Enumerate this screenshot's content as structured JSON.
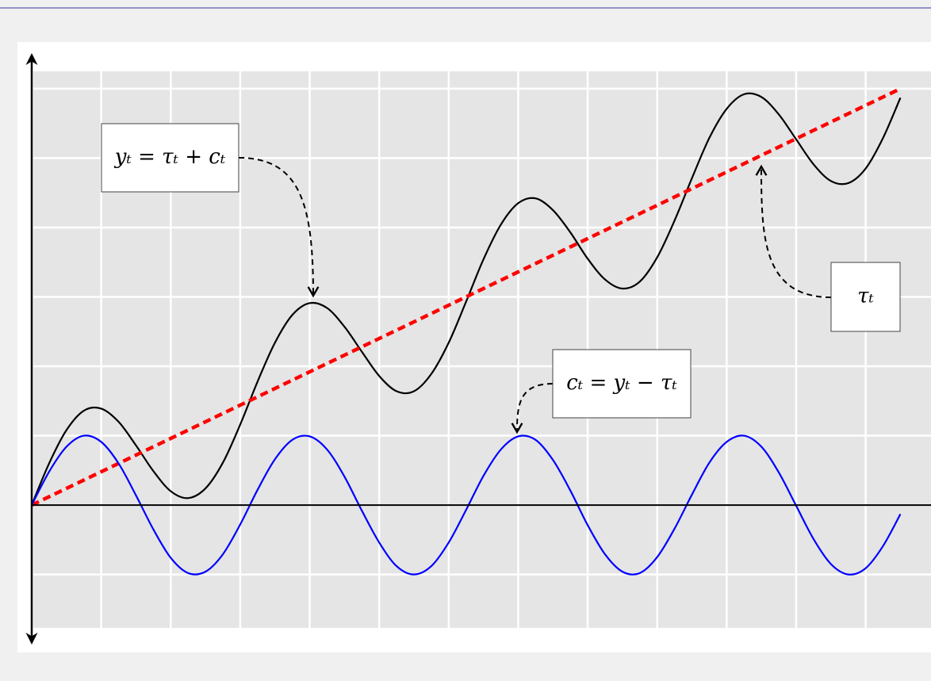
{
  "chart_data": {
    "type": "line",
    "x": [
      0,
      0.25,
      0.5,
      0.75,
      1,
      1.25,
      1.5,
      1.75,
      2,
      2.25,
      2.5,
      2.75,
      3,
      3.25,
      3.5,
      3.75,
      4,
      4.25,
      4.5,
      4.75,
      5,
      5.25,
      5.5,
      5.75,
      6,
      6.25,
      6.5,
      6.75,
      7,
      7.25,
      7.5,
      7.75,
      8,
      8.25,
      8.5,
      8.75,
      9,
      9.25,
      9.5,
      9.75,
      10,
      10.25,
      10.5,
      10.75,
      11,
      11.25,
      11.5,
      11.75,
      12,
      12.25,
      12.5
    ],
    "series": [
      {
        "color": "#000000",
        "linestyle": "solid",
        "values": [
          0,
          0.6,
          1.08,
          1.36,
          1.39,
          1.2,
          0.86,
          0.49,
          0.2,
          0.1,
          0.24,
          0.61,
          1.16,
          1.78,
          2.34,
          2.74,
          2.91,
          2.84,
          2.57,
          2.21,
          1.86,
          1.64,
          1.64,
          1.89,
          2.34,
          2.93,
          3.54,
          4.04,
          4.35,
          4.42,
          4.25,
          3.93,
          3.55,
          3.25,
          3.12,
          3.22,
          3.57,
          4.1,
          4.71,
          5.29,
          5.71,
          5.92,
          5.88,
          5.63,
          5.27,
          4.91,
          4.67,
          4.64,
          4.85,
          5.29,
          5.87
        ]
      },
      {
        "color": "#ff0000",
        "linestyle": "dashed",
        "values": [
          0,
          0.12,
          0.24,
          0.36,
          0.48,
          0.6,
          0.72,
          0.84,
          0.96,
          1.08,
          1.2,
          1.32,
          1.44,
          1.56,
          1.68,
          1.8,
          1.92,
          2.04,
          2.16,
          2.28,
          2.4,
          2.52,
          2.64,
          2.76,
          2.88,
          3.0,
          3.12,
          3.24,
          3.36,
          3.48,
          3.6,
          3.72,
          3.84,
          3.96,
          4.08,
          4.2,
          4.32,
          4.44,
          4.56,
          4.68,
          4.8,
          4.92,
          5.04,
          5.16,
          5.28,
          5.4,
          5.52,
          5.64,
          5.76,
          5.88,
          6.0
        ]
      },
      {
        "color": "#0000ff",
        "linestyle": "solid",
        "values": [
          0,
          0.48,
          0.84,
          1.0,
          0.91,
          0.6,
          0.14,
          -0.35,
          -0.76,
          -0.98,
          -0.96,
          -0.71,
          -0.28,
          0.22,
          0.66,
          0.94,
          0.99,
          0.8,
          0.41,
          -0.08,
          -0.54,
          -0.88,
          -1.0,
          -0.88,
          -0.54,
          -0.07,
          0.42,
          0.8,
          0.99,
          0.94,
          0.65,
          0.21,
          -0.29,
          -0.71,
          -0.96,
          -0.98,
          -0.75,
          -0.34,
          0.15,
          0.61,
          0.91,
          1.0,
          0.84,
          0.47,
          -0.01,
          -0.49,
          -0.85,
          -1.0,
          -0.91,
          -0.59,
          -0.13
        ]
      }
    ],
    "xlim": [
      0,
      12.94
    ],
    "ylim": [
      -1.77,
      6.25
    ],
    "xticks": [
      1,
      2,
      3,
      4,
      5,
      6,
      7,
      8,
      9,
      10,
      11,
      12
    ],
    "yticks": [
      -1,
      0,
      1,
      2,
      3,
      4,
      5,
      6
    ],
    "grid": true,
    "annotations": [
      {
        "text": "yₜ = τₜ + cₜ"
      },
      {
        "text": "τₜ"
      },
      {
        "text": "cₜ = yₜ − τₜ"
      }
    ]
  }
}
